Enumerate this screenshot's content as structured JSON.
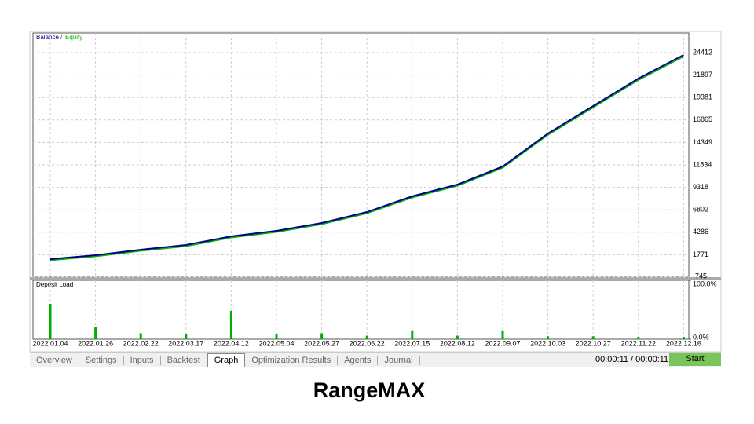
{
  "chart_data": [
    {
      "type": "line",
      "x": [
        "2022.01.04",
        "2022.01.26",
        "2022.02.22",
        "2022.03.17",
        "2022.04.12",
        "2022.05.04",
        "2022.05.27",
        "2022.06.22",
        "2022.07.15",
        "2022.08.12",
        "2022.09.07",
        "2022.10.03",
        "2022.10.27",
        "2022.11.22",
        "2022.12.16"
      ],
      "legend_separator": "/",
      "series": [
        {
          "name": "Balance",
          "color": "#00008b",
          "values": [
            1280,
            1718,
            2333,
            2860,
            3830,
            4444,
            5324,
            6555,
            8315,
            9634,
            11656,
            15350,
            18430,
            21505,
            24145
          ]
        },
        {
          "name": "Equity",
          "color": "#00b000",
          "values": [
            1130,
            1570,
            2190,
            2710,
            3680,
            4300,
            5170,
            6400,
            8160,
            9480,
            11500,
            15180,
            18260,
            21330,
            23960
          ]
        }
      ],
      "ylim": [
        -745,
        26611
      ],
      "yticks": [
        -745,
        1771,
        4286,
        6802,
        9318,
        11834,
        14349,
        16865,
        19381,
        21897,
        24412
      ],
      "grid": true
    },
    {
      "type": "bar",
      "title": "Deposit Load",
      "x": [
        "2022.01.04",
        "2022.01.26",
        "2022.02.22",
        "2022.03.17",
        "2022.04.12",
        "2022.05.04",
        "2022.05.27",
        "2022.06.22",
        "2022.07.15",
        "2022.08.12",
        "2022.09.07",
        "2022.10.03",
        "2022.10.27",
        "2022.11.22",
        "2022.12.16"
      ],
      "values": [
        60,
        20,
        10,
        8,
        48,
        8,
        10,
        6,
        15,
        6,
        15,
        5,
        5,
        4,
        4
      ],
      "color": "#00b000",
      "ylim": [
        0,
        100
      ],
      "yticks": [
        {
          "value": 0,
          "label": "0.0%"
        },
        {
          "value": 100,
          "label": "100.0%"
        }
      ],
      "grid": true
    }
  ],
  "tabs": [
    "Overview",
    "Settings",
    "Inputs",
    "Backtest",
    "Graph",
    "Optimization Results",
    "Agents",
    "Journal"
  ],
  "active_tab": 4,
  "timer": "00:00:11 / 00:00:11",
  "start_button": "Start",
  "caption": "RangeMAX"
}
